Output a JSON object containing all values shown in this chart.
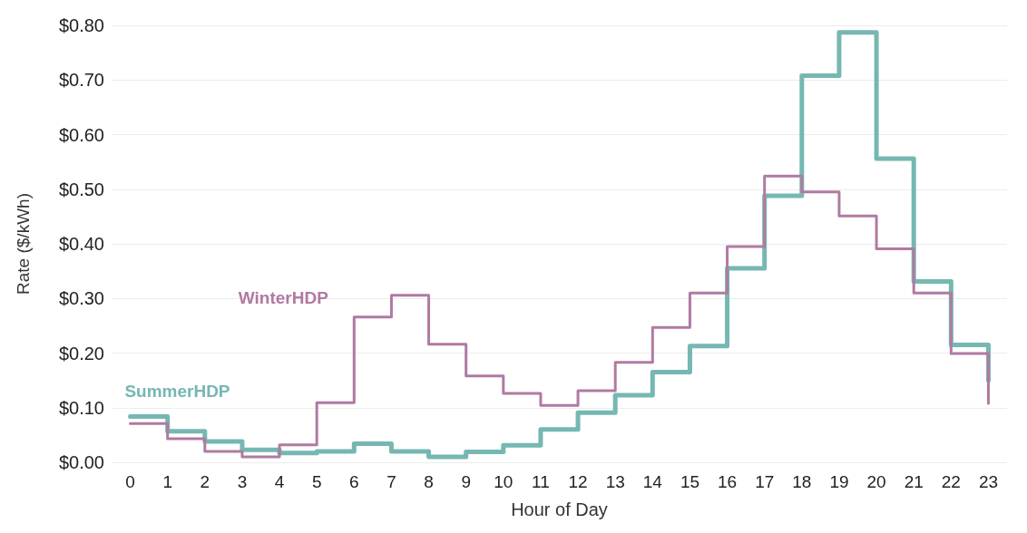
{
  "chart_data": {
    "type": "step",
    "xlabel": "Hour of Day",
    "ylabel": "Rate ($/kWh)",
    "x": [
      0,
      1,
      2,
      3,
      4,
      5,
      6,
      7,
      8,
      9,
      10,
      11,
      12,
      13,
      14,
      15,
      16,
      17,
      18,
      19,
      20,
      21,
      22,
      23
    ],
    "series": [
      {
        "name": "WinterHDP",
        "color": "#b07aa1",
        "values": [
          0.071,
          0.043,
          0.02,
          0.01,
          0.032,
          0.109,
          0.266,
          0.306,
          0.216,
          0.158,
          0.126,
          0.104,
          0.131,
          0.183,
          0.247,
          0.31,
          0.395,
          0.524,
          0.495,
          0.451,
          0.391,
          0.31,
          0.199,
          0.108
        ]
      },
      {
        "name": "SummerHDP",
        "color": "#76b7b2",
        "values": [
          0.084,
          0.057,
          0.038,
          0.023,
          0.017,
          0.02,
          0.034,
          0.02,
          0.01,
          0.019,
          0.031,
          0.06,
          0.091,
          0.123,
          0.165,
          0.213,
          0.355,
          0.488,
          0.708,
          0.787,
          0.556,
          0.331,
          0.215,
          0.15
        ]
      }
    ],
    "xlim": [
      -0.5,
      23.5
    ],
    "xticks": [
      0,
      1,
      2,
      3,
      4,
      5,
      6,
      7,
      8,
      9,
      10,
      11,
      12,
      13,
      14,
      15,
      16,
      17,
      18,
      19,
      20,
      21,
      22,
      23
    ],
    "ylim": [
      0,
      0.8
    ],
    "yticks": [
      {
        "value": 0,
        "label": "$0.00"
      },
      {
        "value": 0.1,
        "label": "$0.10"
      },
      {
        "value": 0.2,
        "label": "$0.20"
      },
      {
        "value": 0.3,
        "label": "$0.30"
      },
      {
        "value": 0.4,
        "label": "$0.40"
      },
      {
        "value": 0.5,
        "label": "$0.50"
      },
      {
        "value": 0.6,
        "label": "$0.60"
      },
      {
        "value": 0.7,
        "label": "$0.70"
      },
      {
        "value": 0.8,
        "label": "$0.80"
      }
    ],
    "grid": "y",
    "legend": false,
    "marker": "none",
    "line_style": "solid"
  }
}
